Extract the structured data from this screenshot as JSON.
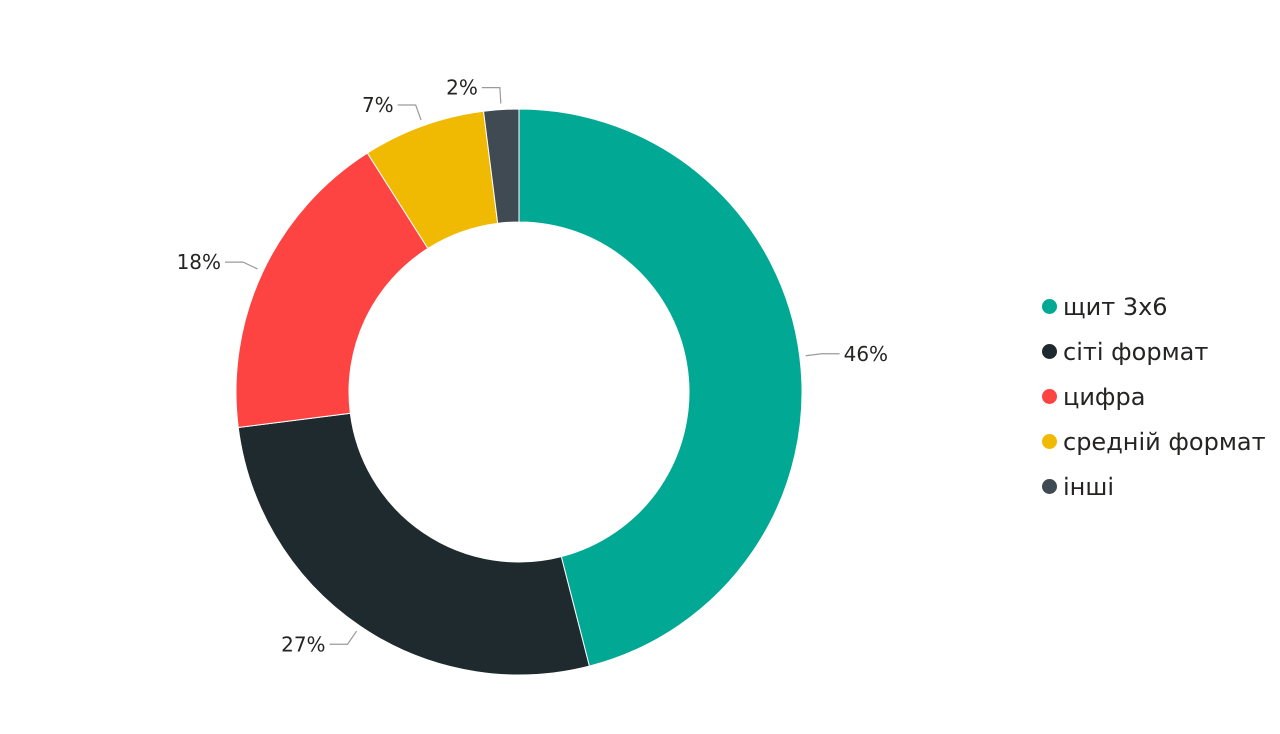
{
  "chart_data": {
    "type": "pie",
    "style": "donut",
    "title": "",
    "legend_position": "right",
    "series": [
      {
        "name": "щит 3х6",
        "value": 46,
        "label": "46%",
        "color": "#01A893"
      },
      {
        "name": "сіті формат",
        "value": 27,
        "label": "27%",
        "color": "#1E2A2D"
      },
      {
        "name": "цифра",
        "value": 18,
        "label": "18%",
        "color": "#FD4443"
      },
      {
        "name": "средній формат",
        "value": 7,
        "label": "7%",
        "color": "#F0BA02"
      },
      {
        "name": "інші",
        "value": 2,
        "label": "2%",
        "color": "#404A52"
      }
    ]
  }
}
